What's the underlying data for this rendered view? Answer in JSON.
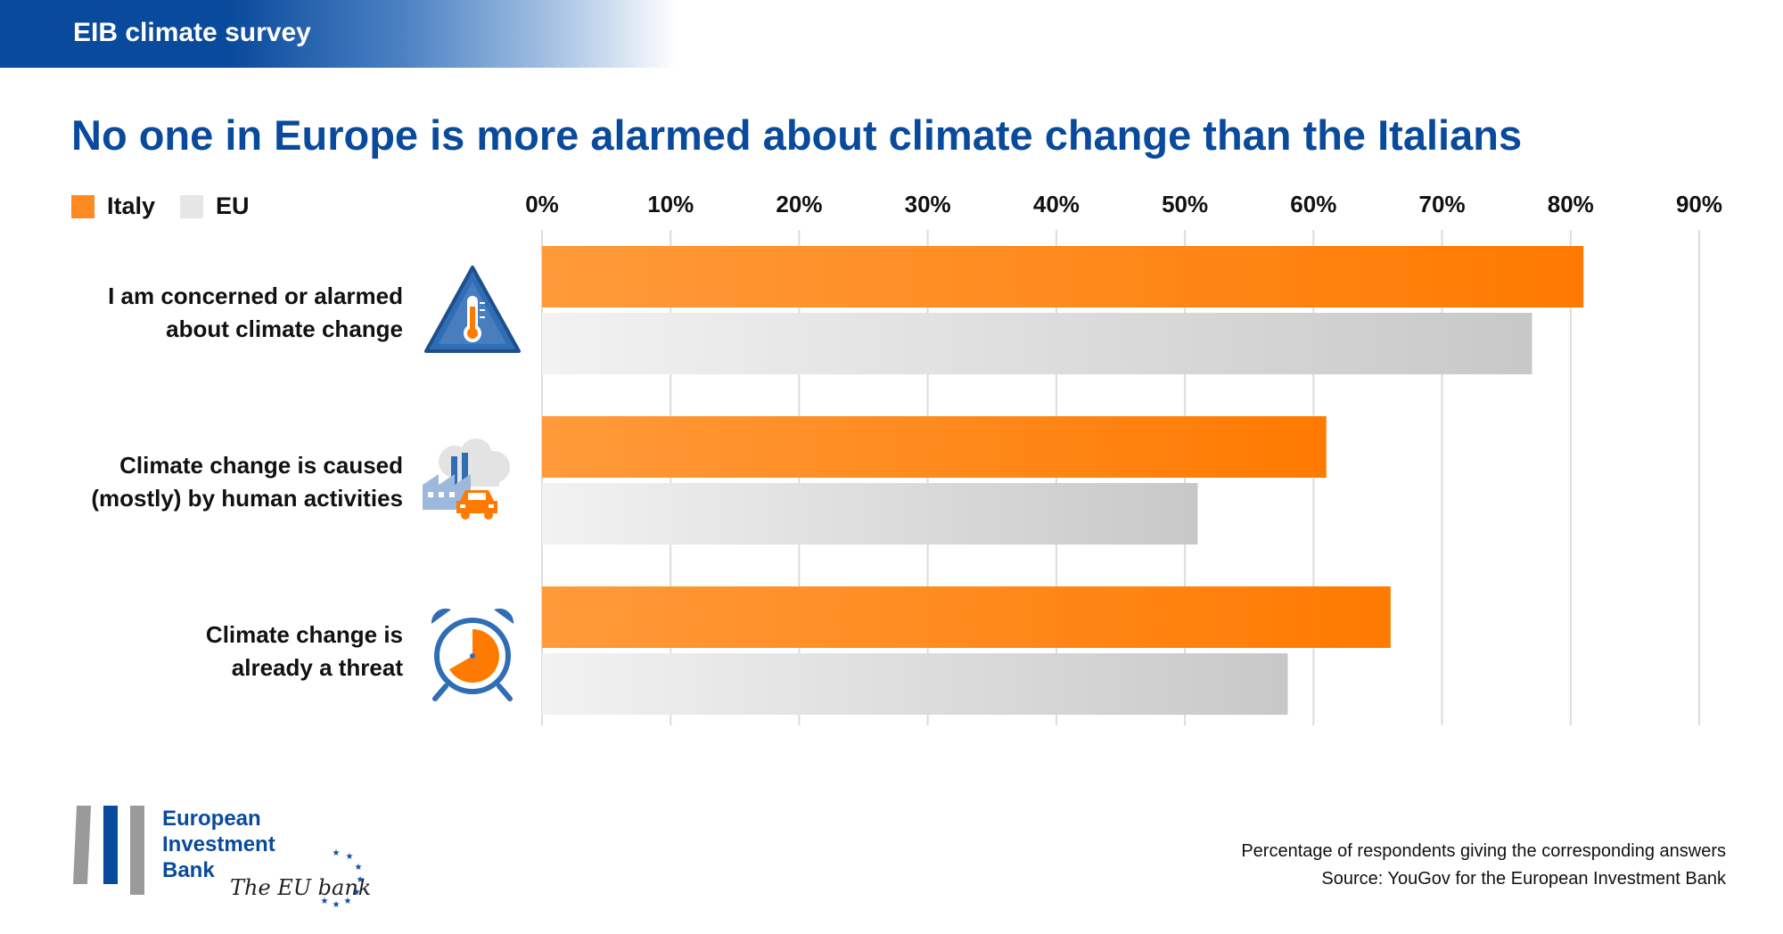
{
  "header": {
    "banner": "EIB climate survey",
    "title": "No one in Europe is more alarmed about climate change than the Italians"
  },
  "legend": [
    {
      "name": "Italy",
      "color": "#ff8a22"
    },
    {
      "name": "EU",
      "color": "#e6e6e6"
    }
  ],
  "chart_data": {
    "type": "bar",
    "orientation": "horizontal",
    "categories": [
      "I am concerned or alarmed about climate change",
      "Climate change is caused (mostly) by human activities",
      "Climate change is already a threat"
    ],
    "category_lines": [
      [
        "I am concerned or alarmed",
        "about climate change"
      ],
      [
        "Climate change is caused",
        "(mostly) by human activities"
      ],
      [
        "Climate change is",
        "already a threat"
      ]
    ],
    "series": [
      {
        "name": "Italy",
        "values": [
          81,
          61,
          66
        ],
        "color": "#ff8a22"
      },
      {
        "name": "EU",
        "values": [
          77,
          51,
          58
        ],
        "color": "#d9d9d9"
      }
    ],
    "xlim": [
      0,
      90
    ],
    "xticks": [
      "0%",
      "10%",
      "20%",
      "30%",
      "40%",
      "50%",
      "60%",
      "70%",
      "80%",
      "90%"
    ],
    "grid": true,
    "legend_position": "top-left"
  },
  "icons": [
    "thermometer-warning-icon",
    "factory-car-icon",
    "alarm-clock-icon"
  ],
  "logo": {
    "lines": [
      "European",
      "Investment",
      "Bank"
    ],
    "tagline": "The EU bank"
  },
  "footnote": {
    "note": "Percentage of respondents giving the corresponding answers",
    "source": "Source: YouGov for the European Investment Bank"
  }
}
